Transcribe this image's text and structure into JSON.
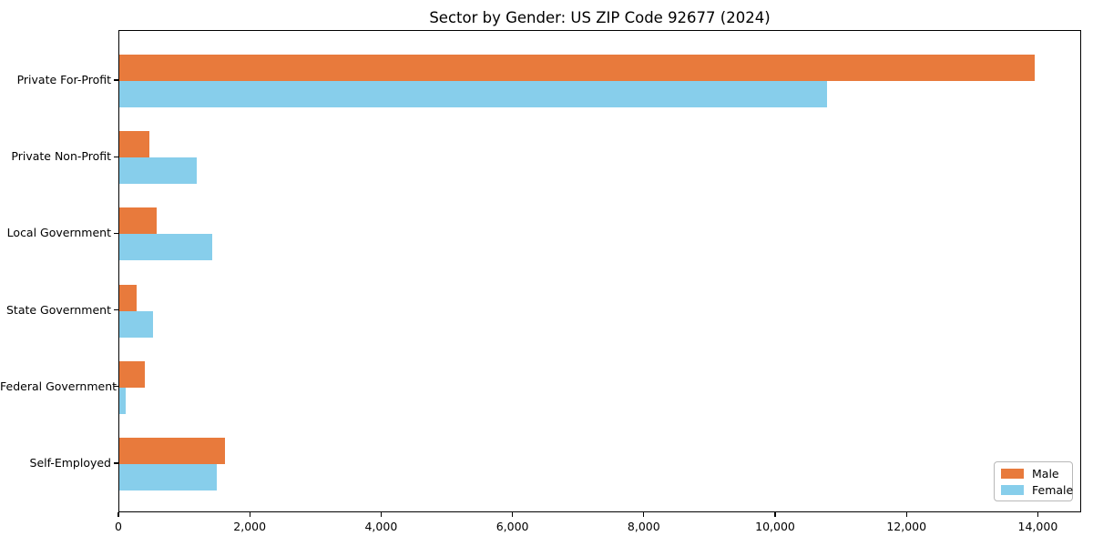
{
  "figure": {
    "title": "Sector by Gender: US ZIP Code 92677 (2024)"
  },
  "chart_data": {
    "type": "bar",
    "orientation": "horizontal",
    "title": "Sector by Gender: US ZIP Code 92677 (2024)",
    "categories": [
      "Private For-Profit",
      "Private Non-Profit",
      "Local Government",
      "State Government",
      "Federal Government",
      "Self-Employed"
    ],
    "series": [
      {
        "name": "Male",
        "color": "#E87A3C",
        "values": [
          13940,
          460,
          570,
          260,
          390,
          1610
        ]
      },
      {
        "name": "Female",
        "color": "#87CEEB",
        "values": [
          10780,
          1180,
          1410,
          510,
          100,
          1480
        ]
      }
    ],
    "xlabel": "",
    "ylabel": "",
    "xlim": [
      0,
      14660
    ],
    "x_ticks": [
      0,
      2000,
      4000,
      6000,
      8000,
      10000,
      12000,
      14000
    ],
    "x_tick_labels": [
      "0",
      "2,000",
      "4,000",
      "6,000",
      "8,000",
      "10,000",
      "12,000",
      "14,000"
    ],
    "grid": false,
    "legend": {
      "position": "lower-right",
      "entries": [
        "Male",
        "Female"
      ]
    }
  },
  "colors": {
    "male": "#E87A3C",
    "female": "#87CEEB",
    "axis": "#000000",
    "background": "#FFFFFF",
    "legend_border": "#B8B8B8"
  }
}
